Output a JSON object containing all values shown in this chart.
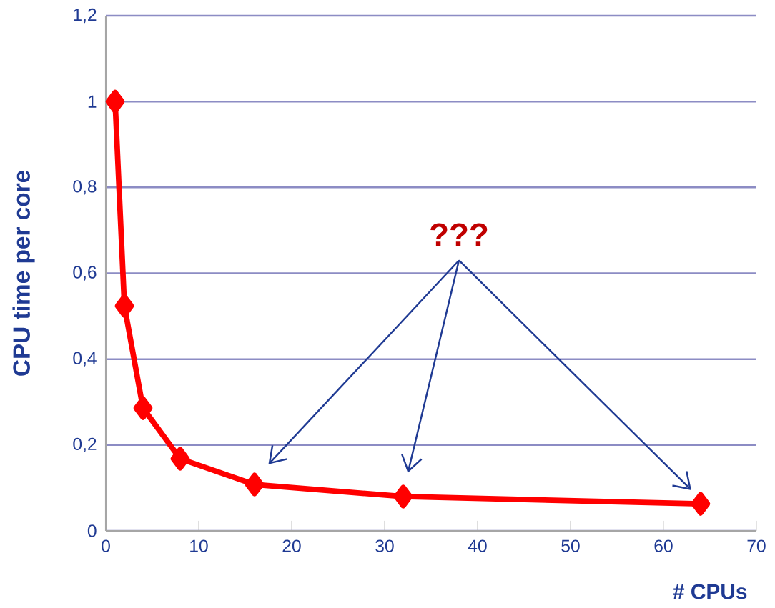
{
  "chart_data": {
    "type": "line",
    "xlabel": "# CPUs",
    "ylabel": "CPU time per core",
    "annotations": [
      "???"
    ],
    "x": [
      1,
      2,
      4,
      8,
      16,
      32,
      64
    ],
    "series": [
      {
        "color": "#ff0000",
        "values": [
          1.0,
          0.524,
          0.286,
          0.168,
          0.108,
          0.08,
          0.063
        ]
      }
    ],
    "xlim": [
      0,
      70
    ],
    "xticks": [
      0,
      10,
      20,
      30,
      40,
      50,
      60,
      70
    ],
    "ylim": [
      0,
      1.2
    ],
    "yticks": [
      0,
      {
        "value": 0.2,
        "label": "0,2"
      },
      {
        "value": 0.4,
        "label": "0,4"
      },
      {
        "value": 0.6,
        "label": "0,6"
      },
      {
        "value": 0.8,
        "label": "0,8"
      },
      1,
      {
        "value": 1.2,
        "label": "1,2"
      }
    ],
    "grid": "y",
    "marker": "diamond",
    "line_style": "solid"
  }
}
